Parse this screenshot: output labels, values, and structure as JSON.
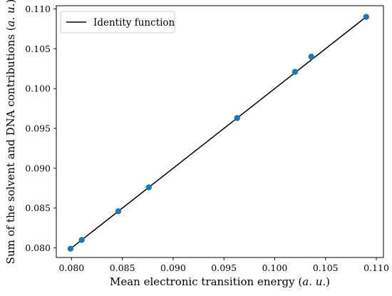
{
  "chart_data": {
    "type": "scatter",
    "xlabel": "Mean electronic transition energy (a. u.)",
    "ylabel": "Sum of the solvent and DNA contributions (a. u.)",
    "xlim": [
      0.0785,
      0.1107
    ],
    "ylim": [
      0.0788,
      0.1104
    ],
    "xticks": [
      0.08,
      0.085,
      0.09,
      0.095,
      0.1,
      0.105,
      0.11
    ],
    "yticks": [
      0.08,
      0.085,
      0.09,
      0.095,
      0.1,
      0.105,
      0.11
    ],
    "xtick_labels": [
      "0.080",
      "0.085",
      "0.090",
      "0.095",
      "0.100",
      "0.105",
      "0.110"
    ],
    "ytick_labels": [
      "0.080",
      "0.085",
      "0.090",
      "0.095",
      "0.100",
      "0.105",
      "0.110"
    ],
    "series": [
      {
        "type": "scatter",
        "color": "#1f77b4",
        "points": [
          {
            "x": 0.0799,
            "y": 0.0799
          },
          {
            "x": 0.081,
            "y": 0.081
          },
          {
            "x": 0.0846,
            "y": 0.0846
          },
          {
            "x": 0.0876,
            "y": 0.0876
          },
          {
            "x": 0.0963,
            "y": 0.0963
          },
          {
            "x": 0.102,
            "y": 0.1021
          },
          {
            "x": 0.1036,
            "y": 0.104
          },
          {
            "x": 0.109,
            "y": 0.109
          }
        ]
      },
      {
        "name": "Identity function",
        "type": "line",
        "color": "#000000",
        "x": [
          0.0799,
          0.109
        ],
        "y": [
          0.0799,
          0.109
        ]
      }
    ],
    "legend": {
      "placement": "upper-left",
      "entries": [
        "Identity function"
      ]
    },
    "grid": false
  }
}
